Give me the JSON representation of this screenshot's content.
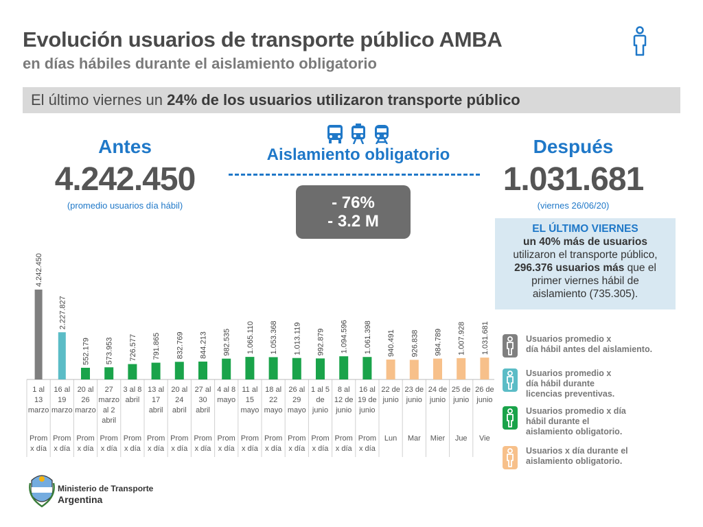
{
  "header": {
    "title": "Evolución usuarios de transporte público AMBA",
    "subtitle": "en días hábiles durante el aislamiento obligatorio"
  },
  "banner": {
    "prefix": "El último viernes un ",
    "bold": "24% de los usuarios utilizaron transporte público"
  },
  "antes": {
    "label": "Antes",
    "value": "4.242.450",
    "note": "(promedio usuarios día hábil)"
  },
  "despues": {
    "label": "Después",
    "value": "1.031.681",
    "note": "(viernes 26/06/20)"
  },
  "aislamiento": {
    "label": "Aislamiento obligatorio",
    "pct": "- 76%",
    "abs": "- 3.2 M"
  },
  "info": {
    "line1": "EL ÚLTIMO VIERNES",
    "line2": "un 40% más de usuarios",
    "line3": "utilizaron el transporte público,",
    "line4_bold": "296.376 usuarios más",
    "line4_rest": " que el",
    "line5": "primer viernes hábil de",
    "line6": "aislamiento (735.305)."
  },
  "legend": [
    {
      "text": [
        "Usuarios promedio x",
        "día hábil antes del aislamiento."
      ],
      "color": "#7f7f7f"
    },
    {
      "text": [
        "Usuarios promedio x",
        "día hábil durante",
        "licencias preventivas."
      ],
      "color": "#5bbcc6"
    },
    {
      "text": [
        "Usuarios promedio x día",
        "hábil durante el",
        "aislamiento obligatorio."
      ],
      "color": "#1aa34a"
    },
    {
      "text": [
        "Usuarios x día durante el",
        "aislamiento obligatorio."
      ],
      "color": "#f7c08a"
    }
  ],
  "ministry": {
    "line1": "Ministerio de Transporte",
    "line2": "Argentina"
  },
  "chart_data": {
    "type": "bar",
    "categories": [
      [
        "1 al",
        "13",
        "marzo"
      ],
      [
        "16 al",
        "19",
        "marzo"
      ],
      [
        "20 al",
        "26",
        "marzo"
      ],
      [
        "27",
        "marzo",
        "al 2",
        "abril"
      ],
      [
        "3 al 8",
        "abril"
      ],
      [
        "13 al",
        "17",
        "abril"
      ],
      [
        "20 al",
        "24",
        "abril"
      ],
      [
        "27 al",
        "30",
        "abril"
      ],
      [
        "4 al 8",
        "mayo"
      ],
      [
        "11 al",
        "15",
        "mayo"
      ],
      [
        "18 al",
        "22",
        "mayo"
      ],
      [
        "26 al",
        "29",
        "mayo"
      ],
      [
        "1 al 5",
        "de",
        "junio"
      ],
      [
        "8 al",
        "12 de",
        "junio"
      ],
      [
        "16 al",
        "19 de",
        "junio"
      ],
      [
        "22 de",
        "junio"
      ],
      [
        "23 de",
        "junio"
      ],
      [
        "24 de",
        "junio"
      ],
      [
        "25 de",
        "junio"
      ],
      [
        "26 de",
        "junio"
      ]
    ],
    "row2": [
      [
        "Prom",
        "x día"
      ],
      [
        "Prom",
        "x día"
      ],
      [
        "Prom",
        "x día"
      ],
      [
        "Prom",
        "x día"
      ],
      [
        "Prom",
        "x día"
      ],
      [
        "Prom",
        "x día"
      ],
      [
        "Prom",
        "x día"
      ],
      [
        "Prom",
        "x día"
      ],
      [
        "Prom",
        "x día"
      ],
      [
        "Prom",
        "x día"
      ],
      [
        "Prom",
        "x día"
      ],
      [
        "Prom",
        "x día"
      ],
      [
        "Prom",
        "x día"
      ],
      [
        "Prom",
        "x día"
      ],
      [
        "Prom",
        "x día"
      ],
      [
        "Lun"
      ],
      [
        "Mar"
      ],
      [
        "Mier"
      ],
      [
        "Jue"
      ],
      [
        "Vie"
      ]
    ],
    "values": [
      4242450,
      2227827,
      552179,
      573953,
      726577,
      791865,
      832769,
      844213,
      982535,
      1065110,
      1053368,
      1013119,
      992879,
      1094596,
      1061398,
      940491,
      926838,
      984789,
      1007928,
      1031681
    ],
    "labels": [
      "4.242.450",
      "2.227.827",
      "552.179",
      "573.953",
      "726.577",
      "791.865",
      "832.769",
      "844.213",
      "982.535",
      "1.065.110",
      "1.053.368",
      "1.013.119",
      "992.879",
      "1.094.596",
      "1.061.398",
      "940.491",
      "926.838",
      "984.789",
      "1.007.928",
      "1.031.681"
    ],
    "colors": [
      "#7f7f7f",
      "#5bbcc6",
      "#1aa34a",
      "#1aa34a",
      "#1aa34a",
      "#1aa34a",
      "#1aa34a",
      "#1aa34a",
      "#1aa34a",
      "#1aa34a",
      "#1aa34a",
      "#1aa34a",
      "#1aa34a",
      "#1aa34a",
      "#1aa34a",
      "#f7c08a",
      "#f7c08a",
      "#f7c08a",
      "#f7c08a",
      "#f7c08a"
    ]
  }
}
